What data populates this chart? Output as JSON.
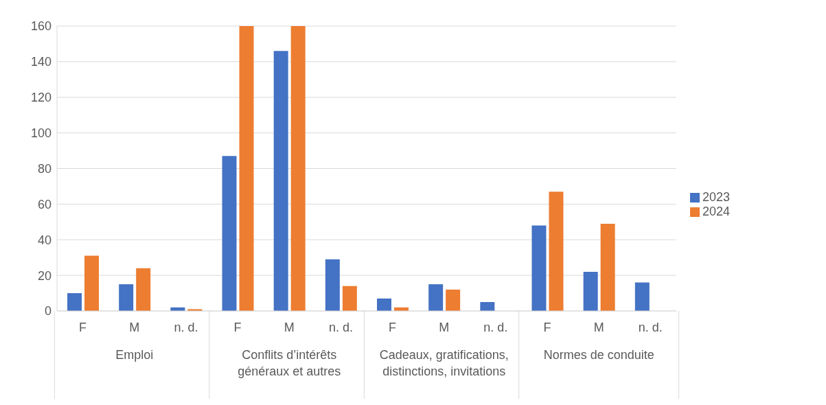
{
  "chart_data": {
    "type": "bar",
    "categories": [
      "F",
      "M",
      "n. d.",
      "F",
      "M",
      "n. d.",
      "F",
      "M",
      "n. d.",
      "F",
      "M",
      "n. d."
    ],
    "annotations": [
      "Emploi",
      "Conflits d’intérêts généraux et autres",
      "Cadeaux, gratifications, distinctions, invitations",
      "Normes de conduite"
    ],
    "series": [
      {
        "name": "2023",
        "color": "#4472c4",
        "values": [
          10,
          15,
          2,
          87,
          146,
          29,
          7,
          15,
          5,
          48,
          22,
          16
        ]
      },
      {
        "name": "2024",
        "color": "#ed7d31",
        "values": [
          31,
          24,
          1,
          160,
          160,
          14,
          2,
          12,
          0,
          67,
          49,
          0
        ]
      }
    ],
    "ylim": [
      0,
      160
    ],
    "yticks": [
      0,
      20,
      40,
      60,
      80,
      100,
      120,
      140,
      160
    ],
    "grid": "y",
    "legend": "right"
  }
}
